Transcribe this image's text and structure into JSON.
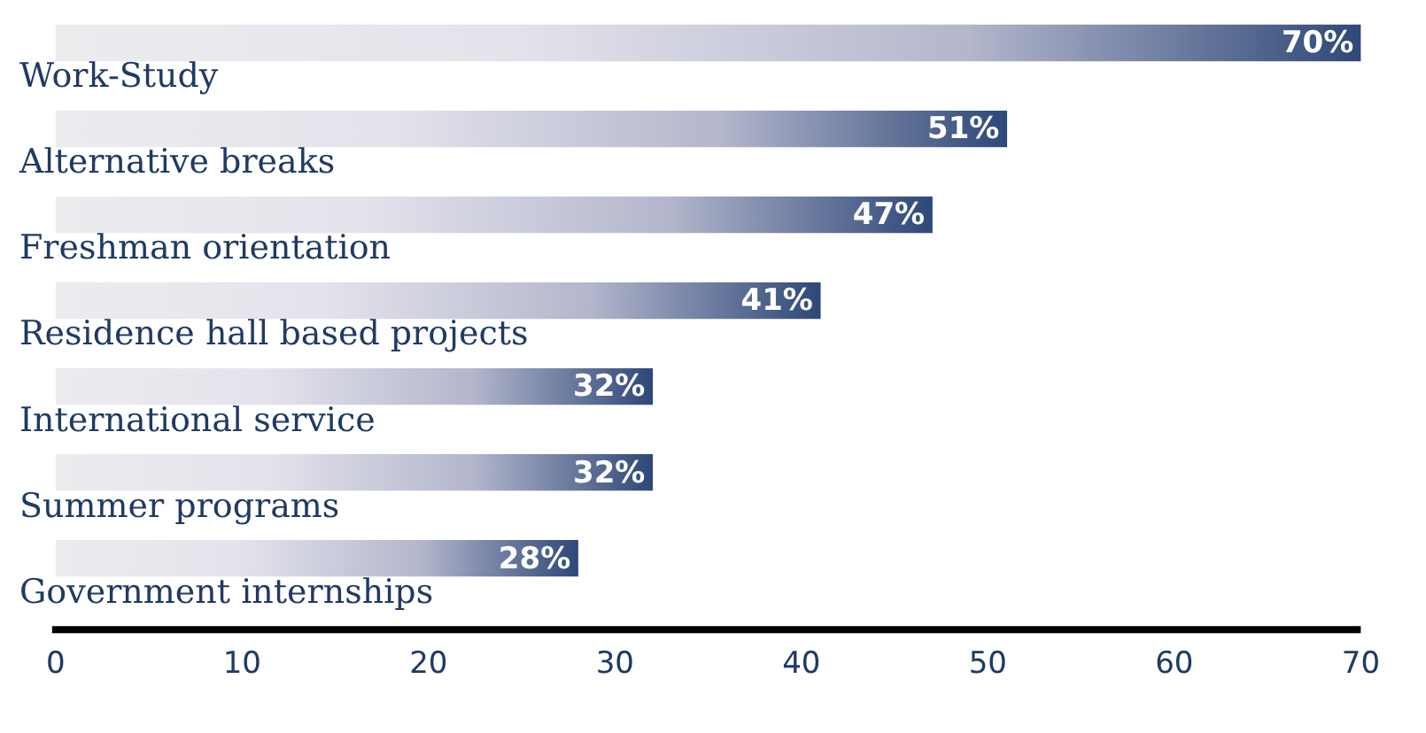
{
  "chart_data": {
    "type": "bar",
    "orientation": "horizontal",
    "categories": [
      "Work-Study",
      "Alternative breaks",
      "Freshman orientation",
      "Residence hall based projects",
      "International service",
      "Summer programs",
      "Government internships"
    ],
    "values": [
      70,
      51,
      47,
      41,
      32,
      32,
      28
    ],
    "value_labels": [
      "70%",
      "51%",
      "47%",
      "41%",
      "32%",
      "32%",
      "28%"
    ],
    "color": "#2e4878",
    "xlim": [
      0,
      70
    ],
    "xticks": [
      0,
      10,
      20,
      30,
      40,
      50,
      60,
      70
    ],
    "grid": false,
    "legend": false
  }
}
